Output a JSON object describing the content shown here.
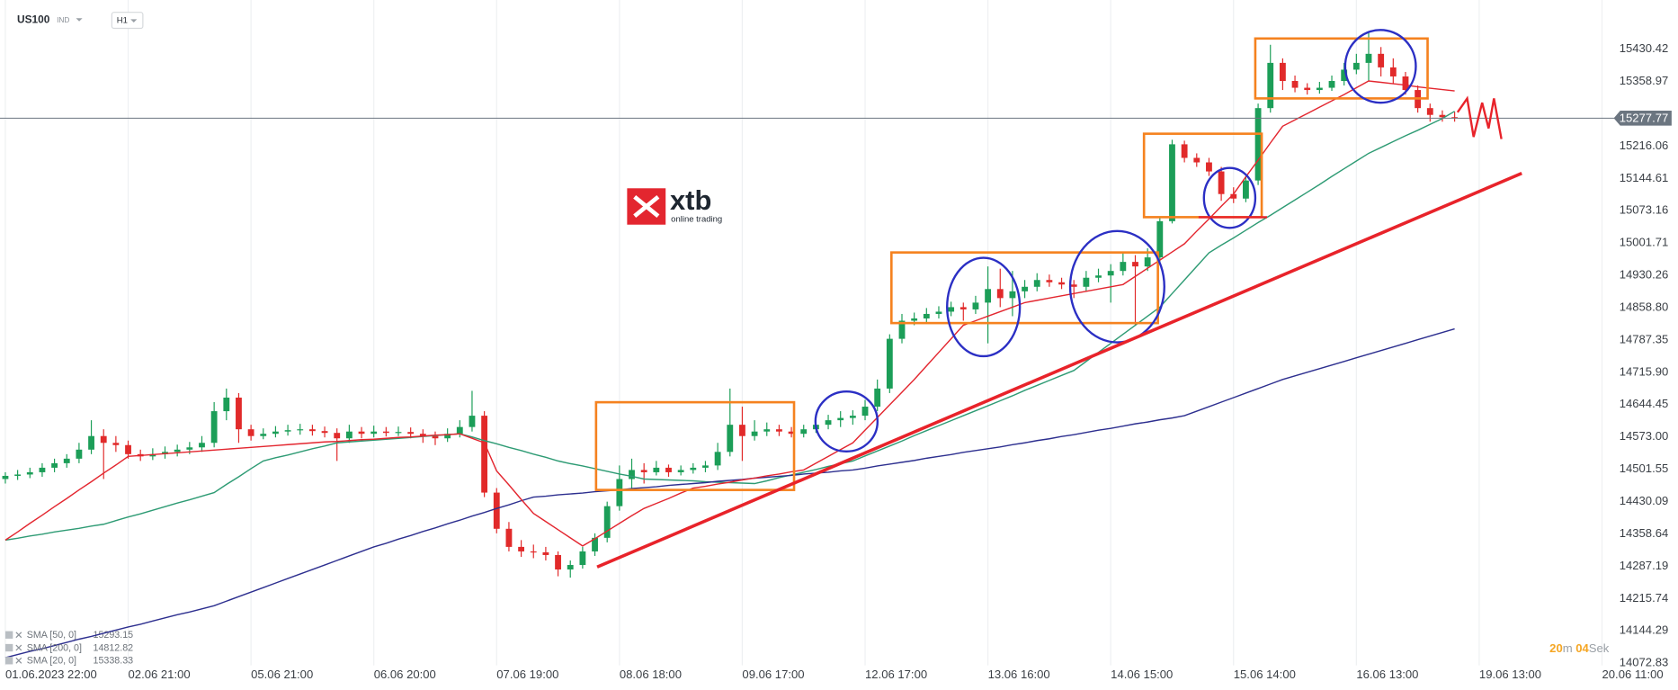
{
  "header": {
    "symbol": "US100",
    "market": "IND",
    "interval": "H1"
  },
  "watermark": {
    "name": "xtb",
    "tagline": "online trading"
  },
  "countdown": {
    "minutes": "20",
    "minutes_unit": "m",
    "seconds": "04",
    "seconds_unit": "Sek"
  },
  "chart_data": {
    "type": "candlestick",
    "up_color": "#1c9e58",
    "down_color": "#e12a2a",
    "grid": "x",
    "last_price": 15277.77,
    "ylim": [
      14068,
      15539
    ],
    "yticks": [
      15430.42,
      15358.97,
      15216.06,
      15144.61,
      15073.16,
      15001.71,
      14930.26,
      {
        "value": 14858.8,
        "label": "14858.80"
      },
      14787.35,
      {
        "value": 14715.9,
        "label": "14715.90"
      },
      14644.45,
      {
        "value": 14573,
        "label": "14573.00"
      },
      14501.55,
      14430.09,
      14358.64,
      14287.19,
      14215.74,
      14144.29,
      14072.83
    ],
    "categories": [
      "01.06.2023 22:00",
      null,
      null,
      null,
      null,
      null,
      null,
      null,
      null,
      null,
      "02.06 21:00",
      null,
      null,
      null,
      null,
      null,
      null,
      null,
      null,
      null,
      "05.06 21:00",
      null,
      null,
      null,
      null,
      null,
      null,
      null,
      null,
      null,
      "06.06 20:00",
      null,
      null,
      null,
      null,
      null,
      null,
      null,
      null,
      null,
      "07.06 19:00",
      null,
      null,
      null,
      null,
      null,
      null,
      null,
      null,
      null,
      "08.06 18:00",
      null,
      null,
      null,
      null,
      null,
      null,
      null,
      null,
      null,
      "09.06 17:00",
      null,
      null,
      null,
      null,
      null,
      null,
      null,
      null,
      null,
      "12.06 17:00",
      null,
      null,
      null,
      null,
      null,
      null,
      null,
      null,
      null,
      "13.06 16:00",
      null,
      null,
      null,
      null,
      null,
      null,
      null,
      null,
      null,
      "14.06 15:00",
      null,
      null,
      null,
      null,
      null,
      null,
      null,
      null,
      null,
      "15.06 14:00",
      null,
      null,
      null,
      null,
      null,
      null,
      null,
      null,
      null,
      "16.06 13:00",
      null,
      null,
      null,
      null,
      null,
      null,
      null,
      null,
      null,
      "19.06 13:00",
      null,
      null,
      null,
      null,
      null,
      null,
      null,
      null,
      null,
      "20.06 11:00"
    ],
    "candles": [
      [
        14480,
        14495,
        14470,
        14487
      ],
      [
        14487,
        14500,
        14478,
        14490
      ],
      [
        14490,
        14505,
        14482,
        14495
      ],
      [
        14495,
        14515,
        14485,
        14505
      ],
      [
        14505,
        14525,
        14495,
        14515
      ],
      [
        14515,
        14535,
        14505,
        14525
      ],
      [
        14525,
        14560,
        14515,
        14545
      ],
      [
        14545,
        14610,
        14535,
        14575
      ],
      [
        14575,
        14590,
        14480,
        14560
      ],
      [
        14560,
        14575,
        14540,
        14555
      ],
      [
        14555,
        14565,
        14525,
        14535
      ],
      [
        14535,
        14545,
        14520,
        14530
      ],
      [
        14530,
        14548,
        14522,
        14535
      ],
      [
        14535,
        14552,
        14525,
        14540
      ],
      [
        14540,
        14556,
        14530,
        14545
      ],
      [
        14545,
        14562,
        14535,
        14550
      ],
      [
        14550,
        14575,
        14540,
        14560
      ],
      [
        14560,
        14650,
        14550,
        14630
      ],
      [
        14630,
        14680,
        14610,
        14660
      ],
      [
        14660,
        14670,
        14560,
        14590
      ],
      [
        14590,
        14600,
        14565,
        14575
      ],
      [
        14575,
        14592,
        14568,
        14580
      ],
      [
        14580,
        14597,
        14572,
        14585
      ],
      [
        14585,
        14600,
        14576,
        14588
      ],
      [
        14588,
        14602,
        14578,
        14590
      ],
      [
        14590,
        14600,
        14576,
        14586
      ],
      [
        14586,
        14596,
        14572,
        14582
      ],
      [
        14582,
        14592,
        14520,
        14570
      ],
      [
        14570,
        14600,
        14560,
        14585
      ],
      [
        14585,
        14595,
        14570,
        14580
      ],
      [
        14580,
        14598,
        14572,
        14585
      ],
      [
        14585,
        14595,
        14574,
        14582
      ],
      [
        14582,
        14596,
        14575,
        14584
      ],
      [
        14584,
        14594,
        14570,
        14580
      ],
      [
        14580,
        14590,
        14560,
        14575
      ],
      [
        14575,
        14585,
        14555,
        14570
      ],
      [
        14570,
        14592,
        14562,
        14580
      ],
      [
        14580,
        14610,
        14572,
        14595
      ],
      [
        14595,
        14675,
        14585,
        14620
      ],
      [
        14620,
        14630,
        14440,
        14450
      ],
      [
        14450,
        14460,
        14360,
        14370
      ],
      [
        14370,
        14385,
        14320,
        14330
      ],
      [
        14330,
        14345,
        14308,
        14320
      ],
      [
        14320,
        14335,
        14305,
        14318
      ],
      [
        14318,
        14330,
        14300,
        14312
      ],
      [
        14312,
        14320,
        14265,
        14280
      ],
      [
        14280,
        14300,
        14262,
        14290
      ],
      [
        14290,
        14330,
        14282,
        14320
      ],
      [
        14320,
        14360,
        14310,
        14350
      ],
      [
        14350,
        14430,
        14340,
        14420
      ],
      [
        14420,
        14510,
        14410,
        14480
      ],
      [
        14480,
        14525,
        14460,
        14500
      ],
      [
        14500,
        14515,
        14470,
        14495
      ],
      [
        14495,
        14520,
        14488,
        14505
      ],
      [
        14505,
        14512,
        14485,
        14495
      ],
      [
        14495,
        14510,
        14488,
        14500
      ],
      [
        14500,
        14515,
        14492,
        14505
      ],
      [
        14505,
        14520,
        14495,
        14510
      ],
      [
        14510,
        14560,
        14500,
        14540
      ],
      [
        14540,
        14680,
        14530,
        14600
      ],
      [
        14600,
        14640,
        14520,
        14575
      ],
      [
        14575,
        14610,
        14565,
        14585
      ],
      [
        14585,
        14605,
        14575,
        14590
      ],
      [
        14590,
        14600,
        14575,
        14585
      ],
      [
        14585,
        14595,
        14572,
        14580
      ],
      [
        14580,
        14600,
        14572,
        14590
      ],
      [
        14590,
        14612,
        14582,
        14600
      ],
      [
        14600,
        14622,
        14590,
        14610
      ],
      [
        14610,
        14630,
        14595,
        14615
      ],
      [
        14615,
        14632,
        14600,
        14620
      ],
      [
        14620,
        14655,
        14610,
        14640
      ],
      [
        14640,
        14700,
        14630,
        14680
      ],
      [
        14680,
        14800,
        14670,
        14790
      ],
      [
        14790,
        14845,
        14780,
        14830
      ],
      [
        14830,
        14848,
        14820,
        14835
      ],
      [
        14835,
        14858,
        14825,
        14845
      ],
      [
        14845,
        14862,
        14835,
        14850
      ],
      [
        14850,
        14872,
        14840,
        14860
      ],
      [
        14860,
        14870,
        14830,
        14855
      ],
      [
        14855,
        14885,
        14845,
        14870
      ],
      [
        14870,
        14950,
        14780,
        14900
      ],
      [
        14900,
        14945,
        14860,
        14880
      ],
      [
        14880,
        14940,
        14840,
        14895
      ],
      [
        14895,
        14920,
        14880,
        14905
      ],
      [
        14905,
        14935,
        14895,
        14920
      ],
      [
        14920,
        14932,
        14905,
        14915
      ],
      [
        14915,
        14925,
        14900,
        14910
      ],
      [
        14910,
        14920,
        14880,
        14905
      ],
      [
        14905,
        14940,
        14895,
        14925
      ],
      [
        14925,
        14945,
        14915,
        14930
      ],
      [
        14930,
        14955,
        14870,
        14940
      ],
      [
        14940,
        14980,
        14930,
        14960
      ],
      [
        14960,
        14975,
        14820,
        14950
      ],
      [
        14950,
        14990,
        14940,
        14970
      ],
      [
        14970,
        15060,
        14960,
        15050
      ],
      [
        15050,
        15230,
        15045,
        15220
      ],
      [
        15220,
        15228,
        15180,
        15190
      ],
      [
        15190,
        15200,
        15170,
        15180
      ],
      [
        15180,
        15190,
        15150,
        15160
      ],
      [
        15160,
        15170,
        15095,
        15110
      ],
      [
        15110,
        15125,
        15090,
        15100
      ],
      [
        15100,
        15150,
        15092,
        15140
      ],
      [
        15140,
        15310,
        15130,
        15300
      ],
      [
        15300,
        15440,
        15290,
        15400
      ],
      [
        15400,
        15410,
        15340,
        15360
      ],
      [
        15360,
        15372,
        15335,
        15345
      ],
      [
        15345,
        15355,
        15330,
        15340
      ],
      [
        15340,
        15358,
        15332,
        15345
      ],
      [
        15345,
        15372,
        15338,
        15360
      ],
      [
        15360,
        15400,
        15350,
        15385
      ],
      [
        15385,
        15420,
        15375,
        15400
      ],
      [
        15400,
        15470,
        15360,
        15420
      ],
      [
        15420,
        15435,
        15370,
        15390
      ],
      [
        15390,
        15410,
        15355,
        15370
      ],
      [
        15370,
        15380,
        15330,
        15340
      ],
      [
        15340,
        15350,
        15290,
        15300
      ],
      [
        15300,
        15310,
        15270,
        15285
      ],
      [
        15285,
        15295,
        15270,
        15280
      ],
      [
        15280,
        15292,
        15270,
        15278
      ],
      null,
      null,
      null,
      null,
      null,
      null,
      null,
      null,
      null,
      null,
      null,
      null
    ],
    "series": [
      {
        "name": "SMA [50, 0]",
        "last": 15293.15,
        "color": "#2e9b74",
        "values": [
          14345,
          14349,
          14354,
          14358,
          14363,
          14367,
          14371,
          14376,
          14380,
          14388,
          14396,
          14403,
          14411,
          14419,
          14427,
          14434,
          14442,
          14450,
          14468,
          14485,
          14503,
          14520,
          14527,
          14533,
          14540,
          14547,
          14553,
          14560,
          14562,
          14564,
          14566,
          14568,
          14570,
          14572,
          14574,
          14576,
          14578,
          14580,
          14573,
          14565,
          14558,
          14550,
          14543,
          14535,
          14528,
          14520,
          14514,
          14509,
          14503,
          14497,
          14491,
          14486,
          14480,
          14479,
          14478,
          14477,
          14476,
          14474,
          14473,
          14472,
          14471,
          14470,
          14476,
          14483,
          14489,
          14495,
          14501,
          14508,
          14514,
          14520,
          14531,
          14542,
          14553,
          14564,
          14576,
          14587,
          14598,
          14609,
          14620,
          14631,
          14642,
          14653,
          14664,
          14676,
          14687,
          14698,
          14709,
          14720,
          14740,
          14760,
          14780,
          14800,
          14820,
          14840,
          14860,
          14890,
          14920,
          14950,
          14980,
          14997,
          15013,
          15030,
          15047,
          15063,
          15080,
          15097,
          15114,
          15131,
          15149,
          15166,
          15183,
          15200,
          15213,
          15226,
          15239,
          15251,
          15264,
          15277,
          15293,
          null,
          null,
          null,
          null,
          null,
          null,
          null,
          null,
          null,
          null,
          null,
          null
        ]
      },
      {
        "name": "SMA [200, 0]",
        "last": 14812.82,
        "color": "#2d2f8f",
        "values": [
          14085,
          14092,
          14099,
          14105,
          14112,
          14119,
          14126,
          14132,
          14139,
          14146,
          14153,
          14159,
          14166,
          14173,
          14180,
          14186,
          14193,
          14200,
          14210,
          14220,
          14230,
          14240,
          14250,
          14260,
          14270,
          14280,
          14290,
          14300,
          14310,
          14320,
          14330,
          14338,
          14347,
          14355,
          14364,
          14372,
          14381,
          14389,
          14398,
          14406,
          14415,
          14423,
          14432,
          14440,
          14442,
          14445,
          14447,
          14449,
          14452,
          14454,
          14456,
          14459,
          14461,
          14463,
          14466,
          14468,
          14470,
          14472,
          14475,
          14477,
          14479,
          14482,
          14484,
          14486,
          14488,
          14491,
          14493,
          14495,
          14498,
          14500,
          14504,
          14509,
          14513,
          14517,
          14521,
          14526,
          14530,
          14534,
          14539,
          14543,
          14547,
          14551,
          14556,
          14560,
          14565,
          14569,
          14574,
          14578,
          14583,
          14588,
          14592,
          14597,
          14602,
          14606,
          14611,
          14615,
          14620,
          14630,
          14640,
          14650,
          14660,
          14670,
          14680,
          14690,
          14700,
          14708,
          14716,
          14724,
          14732,
          14740,
          14748,
          14756,
          14764,
          14772,
          14780,
          14788,
          14796,
          14804,
          14812,
          null,
          null,
          null,
          null,
          null,
          null,
          null,
          null,
          null,
          null,
          null,
          null
        ]
      },
      {
        "name": "SMA [20, 0]",
        "last": 15338.33,
        "color": "#e3262f",
        "values": [
          14345,
          14363,
          14382,
          14400,
          14419,
          14437,
          14456,
          14474,
          14493,
          14511,
          14530,
          14532,
          14534,
          14536,
          14538,
          14540,
          14542,
          14544,
          14546,
          14548,
          14550,
          14552,
          14554,
          14556,
          14558,
          14560,
          14562,
          14563,
          14565,
          14567,
          14568,
          14570,
          14572,
          14573,
          14575,
          14577,
          14578,
          14580,
          14570,
          14560,
          14498,
          14467,
          14435,
          14404,
          14386,
          14368,
          14350,
          14332,
          14348,
          14365,
          14382,
          14399,
          14415,
          14426,
          14437,
          14449,
          14460,
          14464,
          14469,
          14473,
          14478,
          14482,
          14487,
          14491,
          14496,
          14500,
          14515,
          14530,
          14545,
          14560,
          14588,
          14616,
          14644,
          14672,
          14700,
          14730,
          14760,
          14790,
          14820,
          14830,
          14840,
          14850,
          14860,
          14870,
          14875,
          14880,
          14885,
          14890,
          14895,
          14900,
          14905,
          14910,
          14928,
          14946,
          14964,
          14982,
          15000,
          15028,
          15055,
          15083,
          15110,
          15148,
          15185,
          15223,
          15260,
          15274,
          15288,
          15302,
          15316,
          15330,
          15345,
          15360,
          15357,
          15354,
          15351,
          15347,
          15344,
          15341,
          15338,
          null,
          null,
          null,
          null,
          null,
          null,
          null,
          null,
          null,
          null,
          null,
          null
        ]
      }
    ]
  }
}
